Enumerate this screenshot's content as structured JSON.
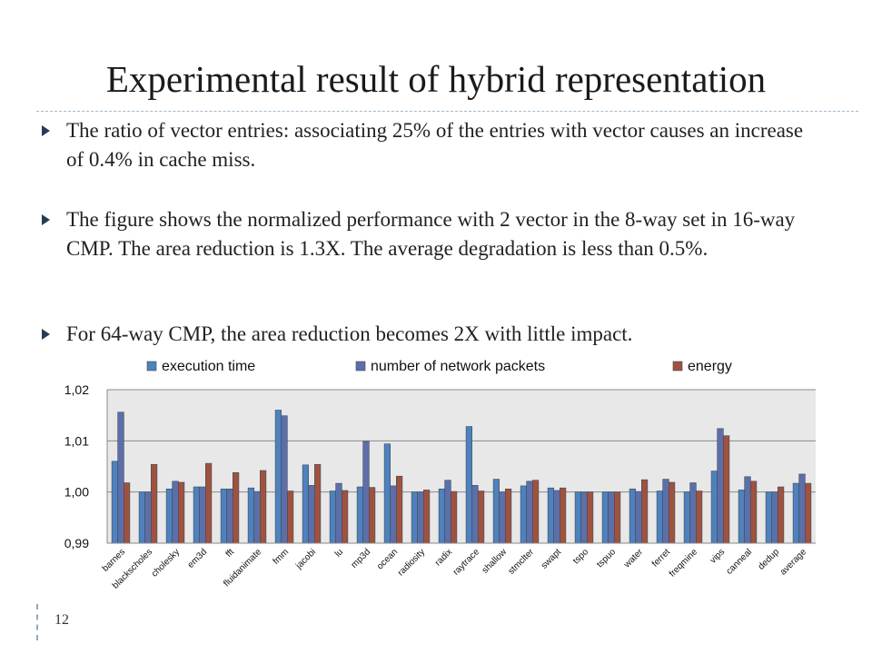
{
  "slide": {
    "title": "Experimental result of hybrid representation",
    "page_number": "12",
    "bullets": [
      {
        "text": "The ratio of vector entries: associating 25% of the entries with vector causes an increase of 0.4% in cache miss."
      },
      {
        "text": "The figure shows the normalized performance with 2 vector in the 8-way set in 16-way CMP. The area reduction is 1.3X. The average degradation is less than 0.5%."
      },
      {
        "text": "For 64-way CMP, the area reduction becomes 2X with little impact."
      }
    ]
  },
  "colors": {
    "series": [
      "#4f81bd",
      "#5c6fa8",
      "#a0523f"
    ],
    "plot_background": "#e8e8e8",
    "bullet_mark": "#243c54"
  },
  "chart_data": {
    "type": "bar",
    "categories": [
      "barnes",
      "blackscholes",
      "cholesky",
      "em3d",
      "fft",
      "fluidanimate",
      "fmm",
      "jacobi",
      "lu",
      "mp3d",
      "ocean",
      "radiosity",
      "radix",
      "raytrace",
      "shallow",
      "stmclter",
      "swapt",
      "tspo",
      "tspuo",
      "water",
      "ferret",
      "freqmine",
      "vips",
      "canneal",
      "dedup",
      "average"
    ],
    "series": [
      {
        "name": "execution time",
        "values": [
          1.006,
          1.0,
          1.0006,
          1.001,
          1.0006,
          1.0008,
          1.016,
          1.0053,
          1.0002,
          1.001,
          1.0094,
          1.0,
          1.0006,
          1.0128,
          1.0025,
          1.0012,
          1.0008,
          1.0,
          1.0,
          1.0006,
          1.0002,
          1.0,
          1.0041,
          1.0004,
          1.0,
          1.0017
        ]
      },
      {
        "name": "number of network packets",
        "values": [
          1.0156,
          1.0,
          1.0021,
          1.001,
          1.0006,
          1.0001,
          1.0149,
          1.0013,
          1.0017,
          1.0099,
          1.0012,
          1.0,
          1.0023,
          1.0013,
          1.0,
          1.0021,
          1.0003,
          1.0,
          1.0,
          1.0001,
          1.0025,
          1.0018,
          1.0124,
          1.003,
          1.0,
          1.0035
        ]
      },
      {
        "name": "energy",
        "values": [
          1.0018,
          1.0054,
          1.0019,
          1.0056,
          1.0038,
          1.0042,
          1.0002,
          1.0054,
          1.0003,
          1.0009,
          1.0031,
          1.0004,
          1.0001,
          1.0002,
          1.0006,
          1.0023,
          1.0008,
          1.0,
          1.0,
          1.0024,
          1.0019,
          1.0002,
          1.011,
          1.0021,
          1.001,
          1.0017
        ]
      }
    ],
    "yticks": [
      "1,02",
      "1,01",
      "1,00",
      "0,99"
    ],
    "ylim": [
      0.99,
      1.02
    ],
    "grid": true,
    "legend": "top"
  }
}
